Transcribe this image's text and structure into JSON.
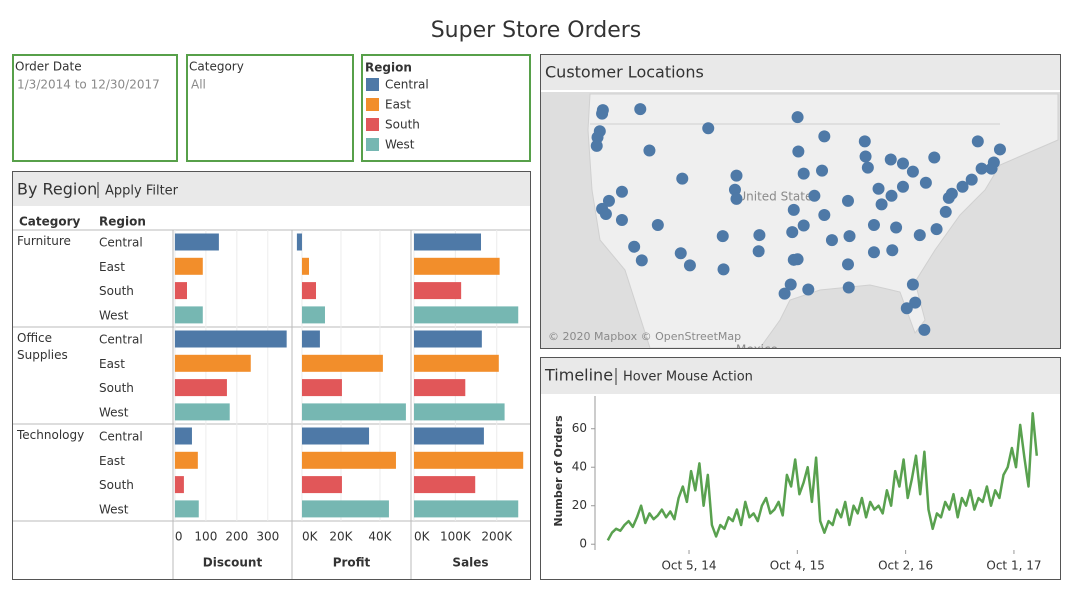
{
  "title": "Super Store Orders",
  "filters": {
    "order_date": {
      "label": "Order Date",
      "value": "1/3/2014 to 12/30/2017"
    },
    "category": {
      "label": "Category",
      "value": "All"
    },
    "region": {
      "label": "Region",
      "items": [
        {
          "name": "Central",
          "color": "#4e79a7"
        },
        {
          "name": "East",
          "color": "#f28e2b"
        },
        {
          "name": "South",
          "color": "#e15759"
        },
        {
          "name": "West",
          "color": "#76b7b2"
        }
      ]
    }
  },
  "by_region": {
    "title": "By Region",
    "action": "Apply Filter",
    "headers": [
      "Category",
      "Region"
    ],
    "categories": [
      "Furniture",
      "Office Supplies",
      "Technology"
    ]
  },
  "customer_locations": {
    "title": "Customer Locations",
    "attribution": "© 2020 Mapbox © OpenStreetMap",
    "map_labels": [
      "United States",
      "Mexico"
    ]
  },
  "timeline": {
    "title": "Timeline",
    "action": "Hover Mouse Action"
  },
  "chart_data": [
    {
      "type": "bar",
      "orientation": "horizontal",
      "x_label": "Discount",
      "xlim": [
        -3,
        375
      ],
      "xticks": [
        0,
        100,
        200,
        300
      ],
      "grid": true,
      "values": [
        [
          142,
          90,
          39,
          90
        ],
        [
          361,
          245,
          168,
          177
        ],
        [
          55,
          74,
          29,
          77
        ]
      ]
    },
    {
      "type": "bar",
      "orientation": "horizontal",
      "x_label": "Profit",
      "xlim": [
        -4600,
        55400
      ],
      "xticks": [
        {
          "value": 0,
          "label": "0K"
        },
        {
          "value": 20000,
          "label": "20K"
        },
        {
          "value": 40000,
          "label": "40K"
        }
      ],
      "grid": true,
      "values": [
        [
          -2600,
          3600,
          7200,
          11800
        ],
        [
          9200,
          41500,
          20500,
          53300
        ],
        [
          34400,
          48200,
          20500,
          44600
        ]
      ]
    },
    {
      "type": "bar",
      "orientation": "horizontal",
      "x_label": "Sales",
      "xlim": [
        -4800,
        278000
      ],
      "xticks": [
        {
          "value": 0,
          "label": "0K"
        },
        {
          "value": 100000,
          "label": "100K"
        },
        {
          "value": 200000,
          "label": "200K"
        }
      ],
      "grid": true,
      "values": [
        [
          162000,
          207000,
          114000,
          252000
        ],
        [
          164000,
          205000,
          124000,
          219000
        ],
        [
          169000,
          264000,
          148000,
          252000
        ]
      ]
    },
    {
      "type": "scatter",
      "color": "#4e79a7",
      "xlim": [
        -130.4,
        -62.7
      ],
      "ylim": [
        24.2,
        49.2
      ],
      "x": [
        -122.3,
        -122.4,
        -122.7,
        -123,
        -123.1,
        -117.4,
        -116.2,
        -122.4,
        -121.9,
        -121.5,
        -119.8,
        -118.2,
        -117.2,
        -115.1,
        -112.1,
        -110.9,
        -111.9,
        -105,
        -104.8,
        -106.6,
        -106.5,
        -108.5,
        -104.8,
        -96.8,
        -96.7,
        -96,
        -94.6,
        -97.3,
        -97.5,
        -96,
        -96.8,
        -97.3,
        -97.7,
        -98.5,
        -95.4,
        -93.3,
        -93.6,
        -87.9,
        -87.6,
        -83,
        -90.2,
        -90,
        -86.8,
        -90.1,
        -90.2,
        -86.8,
        -84.4,
        -81.7,
        -81.4,
        -82.5,
        -80.2,
        -80.8,
        -78.6,
        -77.4,
        -77,
        -76.6,
        -75.2,
        -74,
        -71.1,
        -71.4,
        -72.7,
        -78.9,
        -80,
        -81.7,
        -83,
        -84.5,
        -86.2,
        -85.8,
        -83.9,
        -92.3,
        -101.9,
        -101.8,
        -119.8,
        -73.2,
        -70.3,
        -88,
        -84.6,
        -93.3
      ],
      "y": [
        47.6,
        47.25,
        45.5,
        44.9,
        44.05,
        47.7,
        43.6,
        37.8,
        37.3,
        38.6,
        36.7,
        34.05,
        32.7,
        36.2,
        33.4,
        32.2,
        40.8,
        39.7,
        38.8,
        35.1,
        31.8,
        45.8,
        41.1,
        46.9,
        43.5,
        41.3,
        39.1,
        37.7,
        35.5,
        36.15,
        32.8,
        32.75,
        30.3,
        29.4,
        29.8,
        45,
        41.6,
        43,
        41.9,
        42.3,
        38.6,
        35.1,
        36.2,
        30,
        32.3,
        33.5,
        33.7,
        30.3,
        28.5,
        27.95,
        25.8,
        35.2,
        35.8,
        37.5,
        38.9,
        39.3,
        40,
        40.7,
        42.4,
        41.8,
        41.8,
        42.9,
        40.4,
        41.5,
        40,
        39.1,
        39.8,
        38.25,
        35.96,
        34.7,
        33.6,
        35.2,
        39.5,
        44.5,
        43.7,
        44.5,
        42.7,
        37.2
      ]
    },
    {
      "type": "line",
      "color": "#59a14f",
      "y_label": "Number of Orders",
      "xlim": [
        "2013-11-23",
        "2018-02-16"
      ],
      "ylim": [
        -3,
        77
      ],
      "yticks": [
        0,
        20,
        40,
        60
      ],
      "xticks": [
        {
          "value": "2014-10-05",
          "label": "Oct 5, 14"
        },
        {
          "value": "2015-10-04",
          "label": "Oct 4, 15"
        },
        {
          "value": "2016-10-02",
          "label": "Oct 2, 16"
        },
        {
          "value": "2017-10-01",
          "label": "Oct 1, 17"
        }
      ],
      "x": [
        "2014-01-05",
        "2014-01-19",
        "2014-02-02",
        "2014-02-16",
        "2014-03-02",
        "2014-03-16",
        "2014-03-30",
        "2014-04-13",
        "2014-04-27",
        "2014-05-11",
        "2014-05-25",
        "2014-06-08",
        "2014-06-22",
        "2014-07-06",
        "2014-07-20",
        "2014-08-03",
        "2014-08-17",
        "2014-08-31",
        "2014-09-14",
        "2014-09-28",
        "2014-10-12",
        "2014-10-26",
        "2014-11-09",
        "2014-11-23",
        "2014-12-07",
        "2014-12-21",
        "2015-01-04",
        "2015-01-18",
        "2015-02-01",
        "2015-02-15",
        "2015-03-01",
        "2015-03-15",
        "2015-03-29",
        "2015-04-12",
        "2015-04-26",
        "2015-05-10",
        "2015-05-24",
        "2015-06-07",
        "2015-06-21",
        "2015-07-05",
        "2015-07-19",
        "2015-08-02",
        "2015-08-16",
        "2015-08-30",
        "2015-09-13",
        "2015-09-27",
        "2015-10-11",
        "2015-10-25",
        "2015-11-08",
        "2015-11-22",
        "2015-12-06",
        "2015-12-20",
        "2016-01-03",
        "2016-01-17",
        "2016-01-31",
        "2016-02-14",
        "2016-02-28",
        "2016-03-13",
        "2016-03-27",
        "2016-04-10",
        "2016-04-24",
        "2016-05-08",
        "2016-05-22",
        "2016-06-05",
        "2016-06-19",
        "2016-07-03",
        "2016-07-17",
        "2016-07-31",
        "2016-08-14",
        "2016-08-28",
        "2016-09-11",
        "2016-09-25",
        "2016-10-09",
        "2016-10-23",
        "2016-11-06",
        "2016-11-20",
        "2016-12-04",
        "2016-12-18",
        "2017-01-01",
        "2017-01-15",
        "2017-01-29",
        "2017-02-12",
        "2017-02-26",
        "2017-03-12",
        "2017-03-26",
        "2017-04-09",
        "2017-04-23",
        "2017-05-07",
        "2017-05-21",
        "2017-06-04",
        "2017-06-18",
        "2017-07-02",
        "2017-07-16",
        "2017-07-30",
        "2017-08-13",
        "2017-08-27",
        "2017-09-10",
        "2017-09-24",
        "2017-10-08",
        "2017-10-22",
        "2017-11-05",
        "2017-11-19",
        "2017-12-03",
        "2017-12-17"
      ],
      "values": [
        2,
        6,
        8,
        7,
        10,
        12,
        9,
        14,
        20,
        11,
        16,
        13,
        15,
        18,
        14,
        17,
        13,
        24,
        30,
        22,
        38,
        28,
        42,
        20,
        36,
        10,
        4,
        10,
        8,
        14,
        12,
        18,
        10,
        22,
        14,
        16,
        12,
        20,
        24,
        16,
        18,
        22,
        15,
        36,
        30,
        44,
        26,
        32,
        40,
        22,
        45,
        12,
        6,
        12,
        10,
        18,
        14,
        22,
        10,
        20,
        16,
        24,
        14,
        22,
        18,
        20,
        16,
        28,
        20,
        38,
        30,
        44,
        24,
        34,
        46,
        26,
        48,
        18,
        8,
        16,
        14,
        22,
        18,
        26,
        14,
        24,
        20,
        28,
        18,
        24,
        22,
        30,
        20,
        28,
        24,
        36,
        40,
        50,
        40,
        62,
        45,
        30,
        68,
        46
      ]
    }
  ]
}
